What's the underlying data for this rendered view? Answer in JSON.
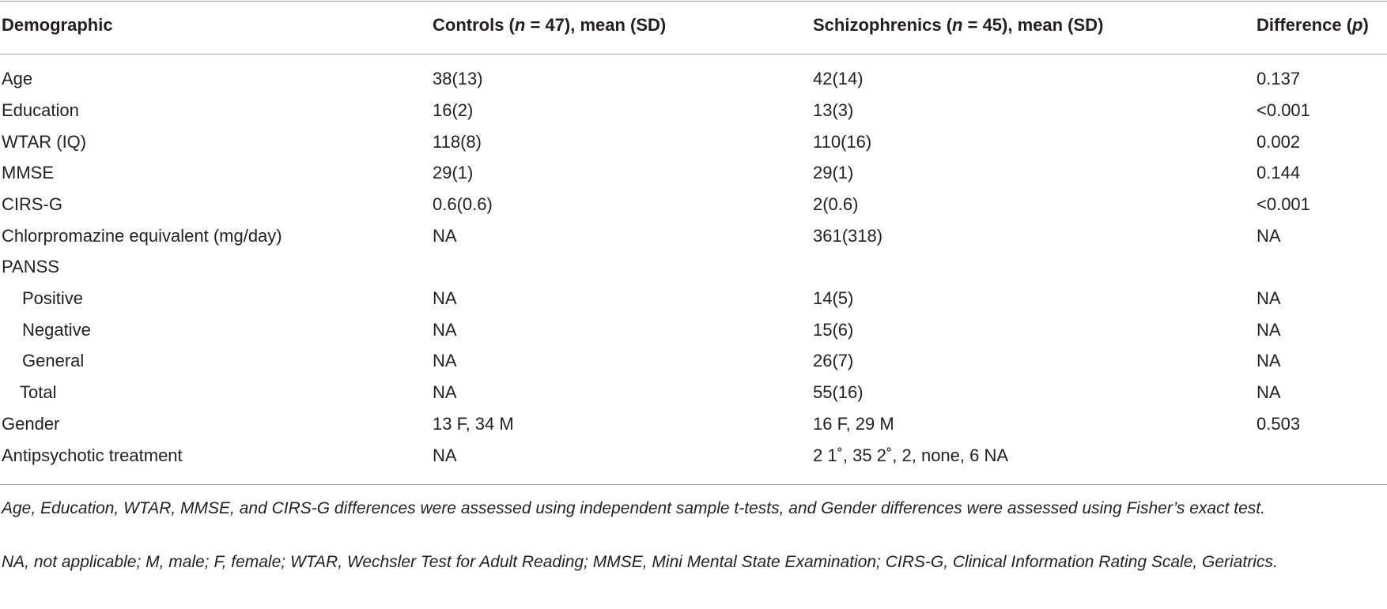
{
  "table": {
    "headers": {
      "demographic": "Demographic",
      "controls_pre": "Controls (",
      "controls_n": "n",
      "controls_post": " = 47), mean (SD)",
      "schiz_pre": "Schizophrenics (",
      "schiz_n": "n",
      "schiz_post": " = 45), mean (SD)",
      "diff_pre": "Difference (",
      "diff_p": "p",
      "diff_post": ")"
    },
    "rows": [
      {
        "label": "Age",
        "controls": "38(13)",
        "schiz": "42(14)",
        "diff": "0.137"
      },
      {
        "label": "Education",
        "controls": "16(2)",
        "schiz": "13(3)",
        "diff": "<0.001"
      },
      {
        "label": "WTAR (IQ)",
        "controls": "118(8)",
        "schiz": "110(16)",
        "diff": "0.002"
      },
      {
        "label": "MMSE",
        "controls": "29(1)",
        "schiz": "29(1)",
        "diff": "0.144"
      },
      {
        "label": "CIRS-G",
        "controls": "0.6(0.6)",
        "schiz": "2(0.6)",
        "diff": "<0.001"
      },
      {
        "label": "Chlorpromazine equivalent (mg/day)",
        "controls": "NA",
        "schiz": "361(318)",
        "diff": "NA"
      },
      {
        "label": "PANSS",
        "controls": "",
        "schiz": "",
        "diff": ""
      },
      {
        "label": "Positive",
        "controls": "NA",
        "schiz": "14(5)",
        "diff": "NA"
      },
      {
        "label": "Negative",
        "controls": "NA",
        "schiz": "15(6)",
        "diff": "NA"
      },
      {
        "label": "General",
        "controls": "NA",
        "schiz": "26(7)",
        "diff": "NA"
      },
      {
        "label": "Total",
        "controls": "NA",
        "schiz": "55(16)",
        "diff": "NA"
      },
      {
        "label": "Gender",
        "controls": "13 F, 34 M",
        "schiz": "16 F, 29 M",
        "diff": "0.503"
      },
      {
        "label": "Antipsychotic treatment",
        "controls": "NA",
        "schiz": "2 1˚, 35 2˚, 2, none, 6 NA",
        "diff": ""
      }
    ]
  },
  "footnotes": {
    "note1": "Age, Education, WTAR, MMSE, and CIRS-G differences were assessed using independent sample t-tests, and Gender differences were assessed using Fisher’s exact test.",
    "note2": "NA, not applicable; M, male; F, female; WTAR, Wechsler Test for Adult Reading; MMSE, Mini Mental State Examination; CIRS-G, Clinical Information Rating Scale, Geriatrics."
  }
}
